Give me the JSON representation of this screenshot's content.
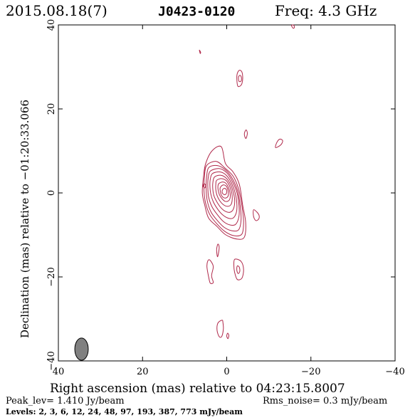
{
  "header": {
    "date": "2015.08.18(7)",
    "source": "J0423-0120",
    "freq": "Freq: 4.3 GHz"
  },
  "axes": {
    "xlabel": "Right ascension (mas) relative to 04:23:15.8007",
    "ylabel": "Declination (mas) relative to −01:20:33.066",
    "xticks": [
      "40",
      "20",
      "0",
      "−20",
      "−40"
    ],
    "yticks": [
      "40",
      "20",
      "0",
      "−20",
      "−40"
    ]
  },
  "footer": {
    "peak": "Peak_lev=  1.410 Jy/beam",
    "rms": "Rms_noise=  0.3 mJy/beam",
    "levels": "Levels:   2,   3,   6,   12,   24,   48,   97,  193,  387,  773 mJy/beam"
  },
  "colors": {
    "contour": "#b0284a",
    "text_accent": "#b0284a",
    "beam_fill": "#808080"
  },
  "chart_data": {
    "type": "contour",
    "xlim": [
      40,
      -40
    ],
    "ylim": [
      -40,
      40
    ],
    "x_unit": "mas",
    "y_unit": "mas",
    "peak_Jy_per_beam": 1.41,
    "rms_mJy_per_beam": 0.3,
    "levels_mJy_per_beam": [
      2,
      3,
      6,
      12,
      24,
      48,
      97,
      193,
      387,
      773
    ],
    "core": {
      "x": 0,
      "y": 0
    },
    "contours": [
      {
        "level": 2,
        "points": [
          [
            5,
            7
          ],
          [
            3.5,
            10
          ],
          [
            1.3,
            11
          ],
          [
            0.3,
            7
          ],
          [
            -1.5,
            5
          ],
          [
            -3,
            2
          ],
          [
            -3.8,
            -3
          ],
          [
            -4.5,
            -7
          ],
          [
            -4.2,
            -10.5
          ],
          [
            -2.5,
            -11
          ],
          [
            0.2,
            -10
          ],
          [
            2.3,
            -8
          ],
          [
            4.3,
            -6
          ],
          [
            5.2,
            -3
          ],
          [
            5.8,
            0
          ],
          [
            5.5,
            4
          ]
        ]
      },
      {
        "level": 3,
        "points": [
          [
            4.8,
            6.5
          ],
          [
            2.5,
            7.5
          ],
          [
            0.5,
            6
          ],
          [
            -1.5,
            4
          ],
          [
            -2.8,
            1
          ],
          [
            -3.6,
            -3
          ],
          [
            -4,
            -7
          ],
          [
            -3.6,
            -9.8
          ],
          [
            -1.8,
            -10.2
          ],
          [
            0.4,
            -9.2
          ],
          [
            2.3,
            -7.4
          ],
          [
            4,
            -5.2
          ],
          [
            5,
            -2.5
          ],
          [
            5.4,
            0.5
          ],
          [
            5.3,
            3.6
          ]
        ]
      },
      {
        "level": 6,
        "points": [
          [
            4.3,
            6
          ],
          [
            2.2,
            6.5
          ],
          [
            0.2,
            5.4
          ],
          [
            -1.4,
            3.3
          ],
          [
            -2.6,
            0.5
          ],
          [
            -3.2,
            -3
          ],
          [
            -3.4,
            -6.5
          ],
          [
            -2.8,
            -8.8
          ],
          [
            -1.2,
            -9
          ],
          [
            0.6,
            -8.2
          ],
          [
            2.2,
            -6.6
          ],
          [
            3.7,
            -4.6
          ],
          [
            4.6,
            -2
          ],
          [
            4.9,
            1
          ],
          [
            4.8,
            3.5
          ]
        ]
      },
      {
        "level": 12,
        "points": [
          [
            3.9,
            5.2
          ],
          [
            1.8,
            5.8
          ],
          [
            0,
            4.8
          ],
          [
            -1.3,
            2.8
          ],
          [
            -2.4,
            0.2
          ],
          [
            -2.9,
            -2.8
          ],
          [
            -2.9,
            -5.6
          ],
          [
            -2.1,
            -7.5
          ],
          [
            -0.7,
            -7.6
          ],
          [
            0.8,
            -6.8
          ],
          [
            2.2,
            -5.2
          ],
          [
            3.5,
            -3.3
          ],
          [
            4.3,
            -1
          ],
          [
            4.5,
            1.6
          ],
          [
            4.4,
            3.6
          ]
        ]
      },
      {
        "level": 24,
        "points": [
          [
            3.4,
            4.6
          ],
          [
            1.6,
            5
          ],
          [
            0.1,
            4.2
          ],
          [
            -1.1,
            2.4
          ],
          [
            -2,
            0
          ],
          [
            -2.4,
            -2.4
          ],
          [
            -2.3,
            -4.6
          ],
          [
            -1.5,
            -6
          ],
          [
            -0.3,
            -6
          ],
          [
            1,
            -5.2
          ],
          [
            2.2,
            -3.8
          ],
          [
            3.2,
            -2.1
          ],
          [
            3.8,
            -0.2
          ],
          [
            4,
            1.8
          ],
          [
            3.9,
            3.3
          ]
        ]
      },
      {
        "level": 48,
        "points": [
          [
            2.9,
            3.8
          ],
          [
            1.4,
            4.2
          ],
          [
            0.1,
            3.5
          ],
          [
            -0.9,
            2
          ],
          [
            -1.6,
            0
          ],
          [
            -1.9,
            -2
          ],
          [
            -1.6,
            -3.8
          ],
          [
            -0.8,
            -4.6
          ],
          [
            0.3,
            -4.4
          ],
          [
            1.4,
            -3.5
          ],
          [
            2.3,
            -2.2
          ],
          [
            3,
            -0.8
          ],
          [
            3.3,
            0.8
          ],
          [
            3.3,
            2.4
          ]
        ]
      },
      {
        "level": 97,
        "points": [
          [
            2.4,
            3
          ],
          [
            1.2,
            3.4
          ],
          [
            0.1,
            2.9
          ],
          [
            -0.7,
            1.6
          ],
          [
            -1.2,
            0
          ],
          [
            -1.3,
            -1.6
          ],
          [
            -1,
            -2.8
          ],
          [
            -0.2,
            -3.2
          ],
          [
            0.8,
            -2.8
          ],
          [
            1.7,
            -1.8
          ],
          [
            2.3,
            -0.6
          ],
          [
            2.6,
            0.8
          ],
          [
            2.6,
            2
          ]
        ]
      },
      {
        "level": 193,
        "points": [
          [
            1.9,
            2.2
          ],
          [
            1,
            2.6
          ],
          [
            0.2,
            2.3
          ],
          [
            -0.4,
            1.3
          ],
          [
            -0.8,
            0
          ],
          [
            -0.8,
            -1.2
          ],
          [
            -0.4,
            -1.9
          ],
          [
            0.4,
            -2
          ],
          [
            1.1,
            -1.4
          ],
          [
            1.7,
            -0.5
          ],
          [
            2,
            0.5
          ],
          [
            2.1,
            1.4
          ]
        ]
      },
      {
        "level": 387,
        "points": [
          [
            1.4,
            1.5
          ],
          [
            0.8,
            1.9
          ],
          [
            0.2,
            1.7
          ],
          [
            -0.2,
            1
          ],
          [
            -0.4,
            0
          ],
          [
            -0.3,
            -0.8
          ],
          [
            0.2,
            -1.2
          ],
          [
            0.8,
            -1.1
          ],
          [
            1.3,
            -0.5
          ],
          [
            1.5,
            0.3
          ],
          [
            1.6,
            1
          ]
        ]
      },
      {
        "level": 773,
        "points": [
          [
            0.9,
            0.9
          ],
          [
            0.5,
            1.1
          ],
          [
            0.1,
            0.8
          ],
          [
            0,
            0.2
          ],
          [
            0.2,
            -0.3
          ],
          [
            0.6,
            -0.4
          ],
          [
            1,
            -0.1
          ],
          [
            1.1,
            0.4
          ]
        ]
      },
      {
        "level": 2,
        "points": [
          [
            -2.6,
            25.5
          ],
          [
            -2.4,
            27.2
          ],
          [
            -2.5,
            28.4
          ],
          [
            -3,
            29.2
          ],
          [
            -3.6,
            28.8
          ],
          [
            -3.8,
            27.3
          ],
          [
            -3.6,
            26
          ],
          [
            -3.1,
            25.4
          ]
        ]
      },
      {
        "level": 3,
        "points": [
          [
            -2.9,
            26.6
          ],
          [
            -2.8,
            27.6
          ],
          [
            -3.2,
            28
          ],
          [
            -3.5,
            27.4
          ],
          [
            -3.4,
            26.6
          ]
        ]
      },
      {
        "level": 2,
        "points": [
          [
            -4.6,
            13
          ],
          [
            -4.9,
            14.2
          ],
          [
            -4.6,
            15
          ],
          [
            -4.2,
            14.2
          ],
          [
            -4.3,
            13.4
          ]
        ]
      },
      {
        "level": 2,
        "points": [
          [
            -11.6,
            10.8
          ],
          [
            -12.8,
            11.4
          ],
          [
            -13.3,
            12.4
          ],
          [
            -12.6,
            12.8
          ],
          [
            -11.9,
            12
          ]
        ]
      },
      {
        "level": 2,
        "points": [
          [
            -6.4,
            -4
          ],
          [
            -7.2,
            -4.6
          ],
          [
            -7.7,
            -5.4
          ],
          [
            -7.6,
            -6.2
          ],
          [
            -7,
            -6.6
          ],
          [
            -6.5,
            -6
          ],
          [
            -6.3,
            -5
          ]
        ]
      },
      {
        "level": 2,
        "points": [
          [
            5.2,
            1.2
          ],
          [
            5.6,
            1.6
          ],
          [
            5.4,
            2.2
          ],
          [
            5,
            1.8
          ]
        ]
      },
      {
        "level": 2,
        "points": [
          [
            -15.4,
            39.8
          ],
          [
            -15.8,
            39.2
          ],
          [
            -16.1,
            39.5
          ],
          [
            -15.8,
            40
          ]
        ]
      },
      {
        "level": 2,
        "points": [
          [
            6.3,
            33.2
          ],
          [
            6.5,
            34
          ],
          [
            6.2,
            33.5
          ]
        ]
      },
      {
        "level": 2,
        "points": [
          [
            4,
            -16
          ],
          [
            3.2,
            -17.5
          ],
          [
            3.6,
            -19.7
          ],
          [
            3.2,
            -21.3
          ],
          [
            3.9,
            -21.5
          ],
          [
            4.3,
            -20
          ],
          [
            4.7,
            -17.6
          ],
          [
            4.5,
            -16.2
          ]
        ]
      },
      {
        "level": 2,
        "points": [
          [
            2.1,
            -12.2
          ],
          [
            2.4,
            -13.5
          ],
          [
            2.2,
            -15.2
          ],
          [
            1.9,
            -14
          ],
          [
            1.8,
            -12.8
          ]
        ]
      },
      {
        "level": 2,
        "points": [
          [
            -1.9,
            -15.8
          ],
          [
            -3.4,
            -16.3
          ],
          [
            -4,
            -18.2
          ],
          [
            -3.6,
            -20.3
          ],
          [
            -2.5,
            -20.6
          ],
          [
            -1.9,
            -19
          ],
          [
            -1.7,
            -17.4
          ]
        ]
      },
      {
        "level": 3,
        "points": [
          [
            -2.5,
            -17.4
          ],
          [
            -3,
            -17.7
          ],
          [
            -3.1,
            -18.7
          ],
          [
            -2.7,
            -19.2
          ],
          [
            -2.4,
            -18.4
          ]
        ]
      },
      {
        "level": 2,
        "points": [
          [
            1.1,
            -30.3
          ],
          [
            2.1,
            -31
          ],
          [
            2.3,
            -32.7
          ],
          [
            1.8,
            -34.2
          ],
          [
            1.2,
            -34.2
          ],
          [
            0.8,
            -32.4
          ],
          [
            0.9,
            -30.9
          ]
        ]
      },
      {
        "level": 2,
        "points": [
          [
            -0.2,
            -33.4
          ],
          [
            -0.5,
            -33.9
          ],
          [
            -0.3,
            -34.7
          ],
          [
            0,
            -34.1
          ]
        ]
      }
    ],
    "beam": {
      "x": 34.5,
      "y": -37.2,
      "major_mas": 4.4,
      "minor_mas": 2.0,
      "pa_deg": 0
    }
  }
}
